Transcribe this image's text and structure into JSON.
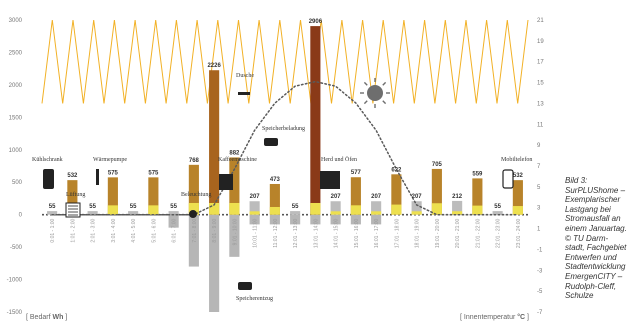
{
  "chart_data": {
    "type": "bar",
    "categories": [
      "0:01 - 1:00",
      "1:01 - 2:00",
      "2:01 - 3:00",
      "3:01 - 4:00",
      "4:01 - 5:00",
      "5:01 - 6:00",
      "6:01 - 7:00",
      "7:01 - 8:00",
      "8:01 - 9:00",
      "9:01 - 10:00",
      "10:01 - 11:00",
      "11:01 - 12:00",
      "12:01 - 13:00",
      "13:01 - 14:00",
      "14:01 - 15:00",
      "15:01 - 16:00",
      "16:01 - 17:00",
      "17:01 - 18:00",
      "18:01 - 19:00",
      "19:01 - 20:00",
      "20:01 - 21:00",
      "21:01 - 22:00",
      "22:01 - 23:00",
      "23:01 - 24:00"
    ],
    "series": [
      {
        "values": [
          55,
          532,
          55,
          575,
          55,
          575,
          55,
          768,
          2226,
          882,
          207,
          473,
          55,
          2906,
          207,
          577,
          207,
          622,
          207,
          705,
          212,
          559,
          55,
          532
        ]
      },
      {
        "values": [
          0,
          0,
          0,
          0,
          0,
          0,
          -200,
          -800,
          -1500,
          -650,
          -150,
          -150,
          -150,
          -150,
          -150,
          -150,
          -150,
          0,
          0,
          0,
          0,
          0,
          0,
          0
        ]
      }
    ],
    "data_labels": [
      "55",
      "532",
      "55",
      "575",
      "55",
      "575",
      "55",
      "768",
      "2226",
      "882",
      "207",
      "473",
      "55",
      "2906",
      "207",
      "577",
      "207",
      "622",
      "207",
      "705",
      "212",
      "559",
      "55",
      "532"
    ],
    "appliance_labels": [
      "Kühlschrank",
      "Lüftung",
      "Wärmepumpe",
      "Beleuchtung",
      "Kaffeemaschine",
      "Dusche",
      "Speicherbeladung",
      "Speicherentzug",
      "Herd und Öfen",
      "Mobiltelefon"
    ],
    "left_ticks": [
      3000,
      2500,
      2000,
      1500,
      1000,
      500,
      0,
      -500,
      -1000,
      -1500
    ],
    "right_ticks": [
      21,
      19,
      17,
      15,
      13,
      11,
      9,
      7,
      5,
      3,
      1,
      -1,
      -3,
      -5,
      -7
    ],
    "ylim": [
      -1500,
      3000
    ],
    "y2lim": [
      -7,
      21
    ],
    "left_axis_label": [
      "Bedarf ",
      "Wh"
    ],
    "right_axis_label": [
      "Innentemperatur ",
      "°C"
    ],
    "temperature": [
      13,
      21,
      13,
      21,
      13,
      21,
      13,
      21,
      13,
      21,
      13,
      21,
      13,
      21,
      13,
      21,
      13,
      21,
      13,
      21,
      13,
      21,
      13,
      21,
      13,
      21,
      13,
      21,
      13,
      21,
      13,
      21,
      13,
      21,
      13,
      21,
      13,
      21,
      13,
      21,
      13,
      21,
      13,
      21,
      13,
      21,
      13,
      21
    ],
    "solar_curve": [
      0,
      0,
      0,
      0,
      0,
      0,
      0,
      0,
      150,
      700,
      1300,
      1720,
      1980,
      2050,
      1980,
      1720,
      1300,
      700,
      150,
      0,
      0,
      0,
      0,
      0
    ],
    "colors": {
      "bar_brown": "#b8832a",
      "bar_dark": "#a8641e",
      "bar_gray": "#bcbcbc",
      "bar_yellow": "#ede04f",
      "peak": "#8a3a18",
      "negative": "#b6b6b6",
      "temperature_line": "#f2b125",
      "solar_line": "#5a5a5a",
      "axis_text": "#777777"
    }
  },
  "caption": [
    "Bild 3:",
    "SurPLUShome –",
    "Exemplarischer",
    "Lastgang bei",
    "Stromausfall an",
    "einem Januartag.",
    "© TU Darm-",
    "stadt, Fachgebiet",
    "Entwerfen und",
    "Stadtentwicklung",
    "EmergenCITY –",
    "Rudolph-Cleff,",
    "Schulze"
  ]
}
